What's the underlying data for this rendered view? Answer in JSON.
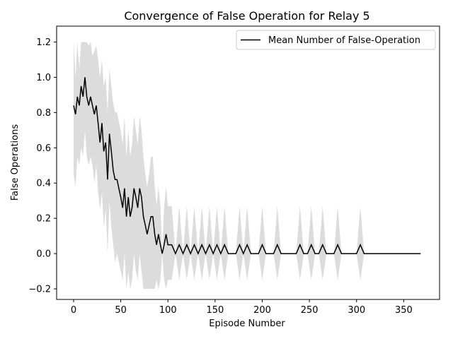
{
  "chart_data": {
    "type": "line",
    "title": "Convergence of False Operation for Relay 5",
    "xlabel": "Episode Number",
    "ylabel": "False Operations",
    "xlim": [
      -18,
      388
    ],
    "ylim": [
      -0.26,
      1.29
    ],
    "xticks": [
      0,
      50,
      100,
      150,
      200,
      250,
      300,
      350
    ],
    "yticks": [
      -0.2,
      0.0,
      0.2,
      0.4,
      0.6,
      0.8,
      1.0,
      1.2
    ],
    "xtick_labels": [
      "0",
      "50",
      "100",
      "150",
      "200",
      "250",
      "300",
      "350"
    ],
    "ytick_labels": [
      "−0.2",
      "0.0",
      "0.2",
      "0.4",
      "0.6",
      "0.8",
      "1.0",
      "1.2"
    ],
    "grid": false,
    "legend": {
      "position": "upper-right",
      "entries": [
        "Mean Number of False-Operation"
      ]
    },
    "band_color": "#dcdcdc",
    "line_color": "#000000",
    "series": [
      {
        "name": "Mean Number of False-Operation",
        "x": [
          0,
          2,
          4,
          6,
          8,
          10,
          12,
          14,
          16,
          18,
          20,
          22,
          24,
          26,
          28,
          30,
          32,
          34,
          36,
          38,
          40,
          42,
          44,
          46,
          48,
          50,
          52,
          54,
          56,
          58,
          60,
          62,
          64,
          66,
          68,
          70,
          72,
          74,
          76,
          78,
          80,
          82,
          84,
          86,
          88,
          90,
          92,
          94,
          96,
          98,
          100,
          104,
          108,
          112,
          116,
          120,
          124,
          128,
          132,
          136,
          140,
          144,
          148,
          152,
          156,
          160,
          164,
          168,
          172,
          176,
          180,
          184,
          188,
          192,
          196,
          200,
          204,
          208,
          212,
          216,
          220,
          224,
          228,
          232,
          236,
          240,
          244,
          248,
          252,
          256,
          260,
          264,
          268,
          272,
          276,
          280,
          284,
          288,
          292,
          296,
          300,
          304,
          308,
          312,
          316,
          320,
          324,
          328,
          332,
          336,
          340,
          344,
          348,
          352,
          356,
          360,
          364,
          368
        ],
        "mean": [
          0.84,
          0.79,
          0.89,
          0.84,
          0.95,
          0.89,
          1.0,
          0.89,
          0.84,
          0.89,
          0.84,
          0.79,
          0.84,
          0.74,
          0.63,
          0.74,
          0.58,
          0.63,
          0.42,
          0.68,
          0.58,
          0.47,
          0.42,
          0.42,
          0.37,
          0.32,
          0.26,
          0.37,
          0.21,
          0.32,
          0.21,
          0.26,
          0.37,
          0.32,
          0.26,
          0.37,
          0.32,
          0.21,
          0.16,
          0.11,
          0.16,
          0.21,
          0.21,
          0.11,
          0.05,
          0.11,
          0.05,
          0.0,
          0.05,
          0.11,
          0.05,
          0.05,
          0.0,
          0.05,
          0.0,
          0.05,
          0.0,
          0.05,
          0.0,
          0.05,
          0.0,
          0.05,
          0.0,
          0.05,
          0.0,
          0.05,
          0.0,
          0.0,
          0.0,
          0.05,
          0.0,
          0.05,
          0.0,
          0.0,
          0.0,
          0.05,
          0.0,
          0.0,
          0.0,
          0.05,
          0.0,
          0.0,
          0.0,
          0.0,
          0.0,
          0.05,
          0.0,
          0.0,
          0.05,
          0.0,
          0.0,
          0.05,
          0.0,
          0.0,
          0.0,
          0.05,
          0.0,
          0.0,
          0.0,
          0.0,
          0.0,
          0.05,
          0.0,
          0.0,
          0.0,
          0.0,
          0.0,
          0.0,
          0.0,
          0.0,
          0.0,
          0.0,
          0.0,
          0.0,
          0.0,
          0.0,
          0.0,
          0.0
        ],
        "upper": [
          1.2,
          1.0,
          1.2,
          1.05,
          1.2,
          1.2,
          1.2,
          1.2,
          1.18,
          1.2,
          1.12,
          1.15,
          1.18,
          1.1,
          1.0,
          1.1,
          0.95,
          1.0,
          0.8,
          1.05,
          0.95,
          0.85,
          0.8,
          0.8,
          0.75,
          0.7,
          0.62,
          0.78,
          0.55,
          0.7,
          0.55,
          0.62,
          0.78,
          0.7,
          0.62,
          0.78,
          0.7,
          0.55,
          0.45,
          0.38,
          0.45,
          0.55,
          0.55,
          0.38,
          0.27,
          0.38,
          0.27,
          0.0,
          0.27,
          0.38,
          0.27,
          0.27,
          0.0,
          0.27,
          0.0,
          0.27,
          0.0,
          0.27,
          0.0,
          0.27,
          0.0,
          0.27,
          0.0,
          0.27,
          0.0,
          0.27,
          0.0,
          0.0,
          0.0,
          0.27,
          0.0,
          0.27,
          0.0,
          0.0,
          0.0,
          0.27,
          0.0,
          0.0,
          0.0,
          0.27,
          0.0,
          0.0,
          0.0,
          0.0,
          0.0,
          0.27,
          0.0,
          0.0,
          0.27,
          0.0,
          0.0,
          0.27,
          0.0,
          0.0,
          0.0,
          0.27,
          0.0,
          0.0,
          0.0,
          0.0,
          0.0,
          0.27,
          0.0,
          0.0,
          0.0,
          0.0,
          0.0,
          0.0,
          0.0,
          0.0,
          0.0,
          0.0,
          0.0,
          0.0,
          0.0,
          0.0,
          0.0,
          0.0
        ],
        "lower": [
          0.45,
          0.38,
          0.55,
          0.5,
          0.6,
          0.55,
          0.7,
          0.55,
          0.5,
          0.55,
          0.5,
          0.4,
          0.5,
          0.35,
          0.25,
          0.35,
          0.15,
          0.25,
          0.0,
          0.3,
          0.15,
          0.05,
          -0.05,
          0.0,
          -0.05,
          -0.1,
          -0.15,
          0.0,
          -0.2,
          -0.1,
          -0.2,
          -0.15,
          0.0,
          -0.1,
          -0.15,
          0.0,
          -0.1,
          -0.2,
          -0.2,
          -0.2,
          -0.2,
          -0.2,
          -0.2,
          -0.2,
          -0.15,
          -0.2,
          -0.15,
          0.0,
          -0.15,
          -0.2,
          -0.15,
          -0.15,
          0.0,
          -0.15,
          0.0,
          -0.15,
          0.0,
          -0.15,
          0.0,
          -0.15,
          0.0,
          -0.15,
          0.0,
          -0.15,
          0.0,
          -0.15,
          0.0,
          0.0,
          0.0,
          -0.15,
          0.0,
          -0.15,
          0.0,
          0.0,
          0.0,
          -0.15,
          0.0,
          0.0,
          0.0,
          -0.15,
          0.0,
          0.0,
          0.0,
          0.0,
          0.0,
          -0.15,
          0.0,
          0.0,
          -0.15,
          0.0,
          0.0,
          -0.15,
          0.0,
          0.0,
          0.0,
          -0.15,
          0.0,
          0.0,
          0.0,
          0.0,
          0.0,
          -0.15,
          0.0,
          0.0,
          0.0,
          0.0,
          0.0,
          0.0,
          0.0,
          0.0,
          0.0,
          0.0,
          0.0,
          0.0,
          0.0,
          0.0,
          0.0,
          0.0
        ]
      }
    ]
  }
}
